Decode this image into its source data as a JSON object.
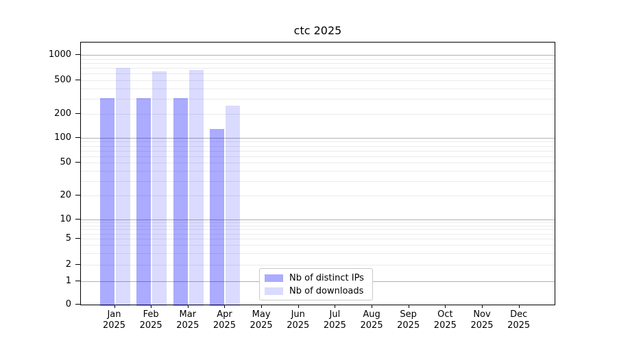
{
  "chart_data": {
    "type": "bar",
    "title": "ctc 2025",
    "year_label": "2025",
    "categories": [
      "Jan",
      "Feb",
      "Mar",
      "Apr",
      "May",
      "Jun",
      "Jul",
      "Aug",
      "Sep",
      "Oct",
      "Nov",
      "Dec"
    ],
    "series": [
      {
        "name": "Nb of distinct IPs",
        "color": "rgba(0,0,255,0.33)",
        "values": [
          310,
          310,
          305,
          130,
          null,
          null,
          null,
          null,
          null,
          null,
          null,
          null
        ]
      },
      {
        "name": "Nb of downloads",
        "color": "rgba(0,0,255,0.14)",
        "values": [
          700,
          640,
          665,
          250,
          null,
          null,
          null,
          null,
          null,
          null,
          null,
          null
        ]
      }
    ],
    "yticks": [
      1000,
      500,
      200,
      100,
      50,
      20,
      10,
      5,
      2,
      1,
      0
    ],
    "ylim": [
      0,
      1000
    ],
    "yscale": "log-with-zero",
    "grid": true,
    "legend_position": "lower-center",
    "colors": {
      "major_grid": "#b0b0b0",
      "minor_grid": "#ebebeb",
      "axis": "#000000"
    }
  }
}
